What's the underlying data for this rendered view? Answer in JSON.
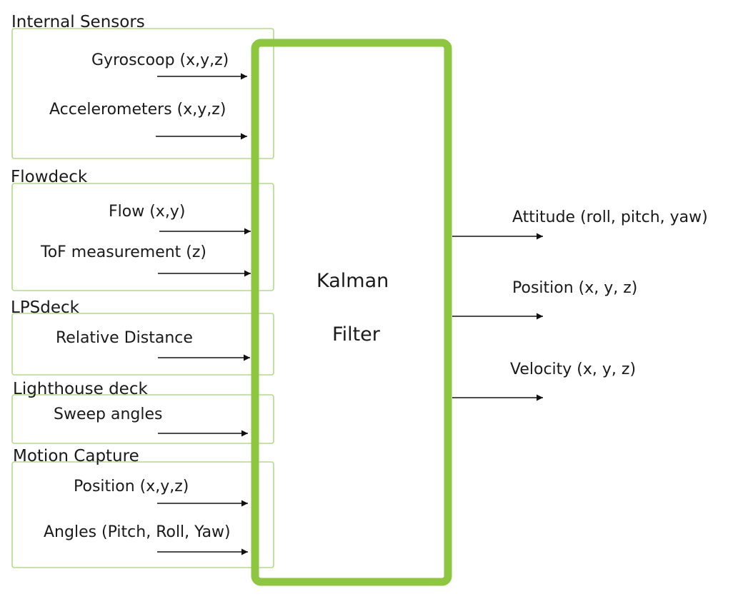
{
  "groups": [
    {
      "title": "Internal Sensors",
      "inputs": [
        "Gyroscoop (x,y,z)",
        "Accelerometers (x,y,z)"
      ]
    },
    {
      "title": "Flowdeck",
      "inputs": [
        "Flow (x,y)",
        "ToF measurement (z)"
      ]
    },
    {
      "title": "LPSdeck",
      "inputs": [
        "Relative Distance"
      ]
    },
    {
      "title": "Lighthouse deck",
      "inputs": [
        "Sweep angles"
      ]
    },
    {
      "title": "Motion Capture",
      "inputs": [
        "Position (x,y,z)",
        "Angles (Pitch, Roll, Yaw)"
      ]
    }
  ],
  "filter": {
    "line1": "Kalman",
    "line2": "Filter"
  },
  "outputs": [
    "Attitude (roll, pitch, yaw)",
    "Position (x, y, z)",
    "Velocity (x, y, z)"
  ],
  "colors": {
    "filter_border": "#8dc63f",
    "group_border": "#b5d98a",
    "arrow": "#111111"
  }
}
